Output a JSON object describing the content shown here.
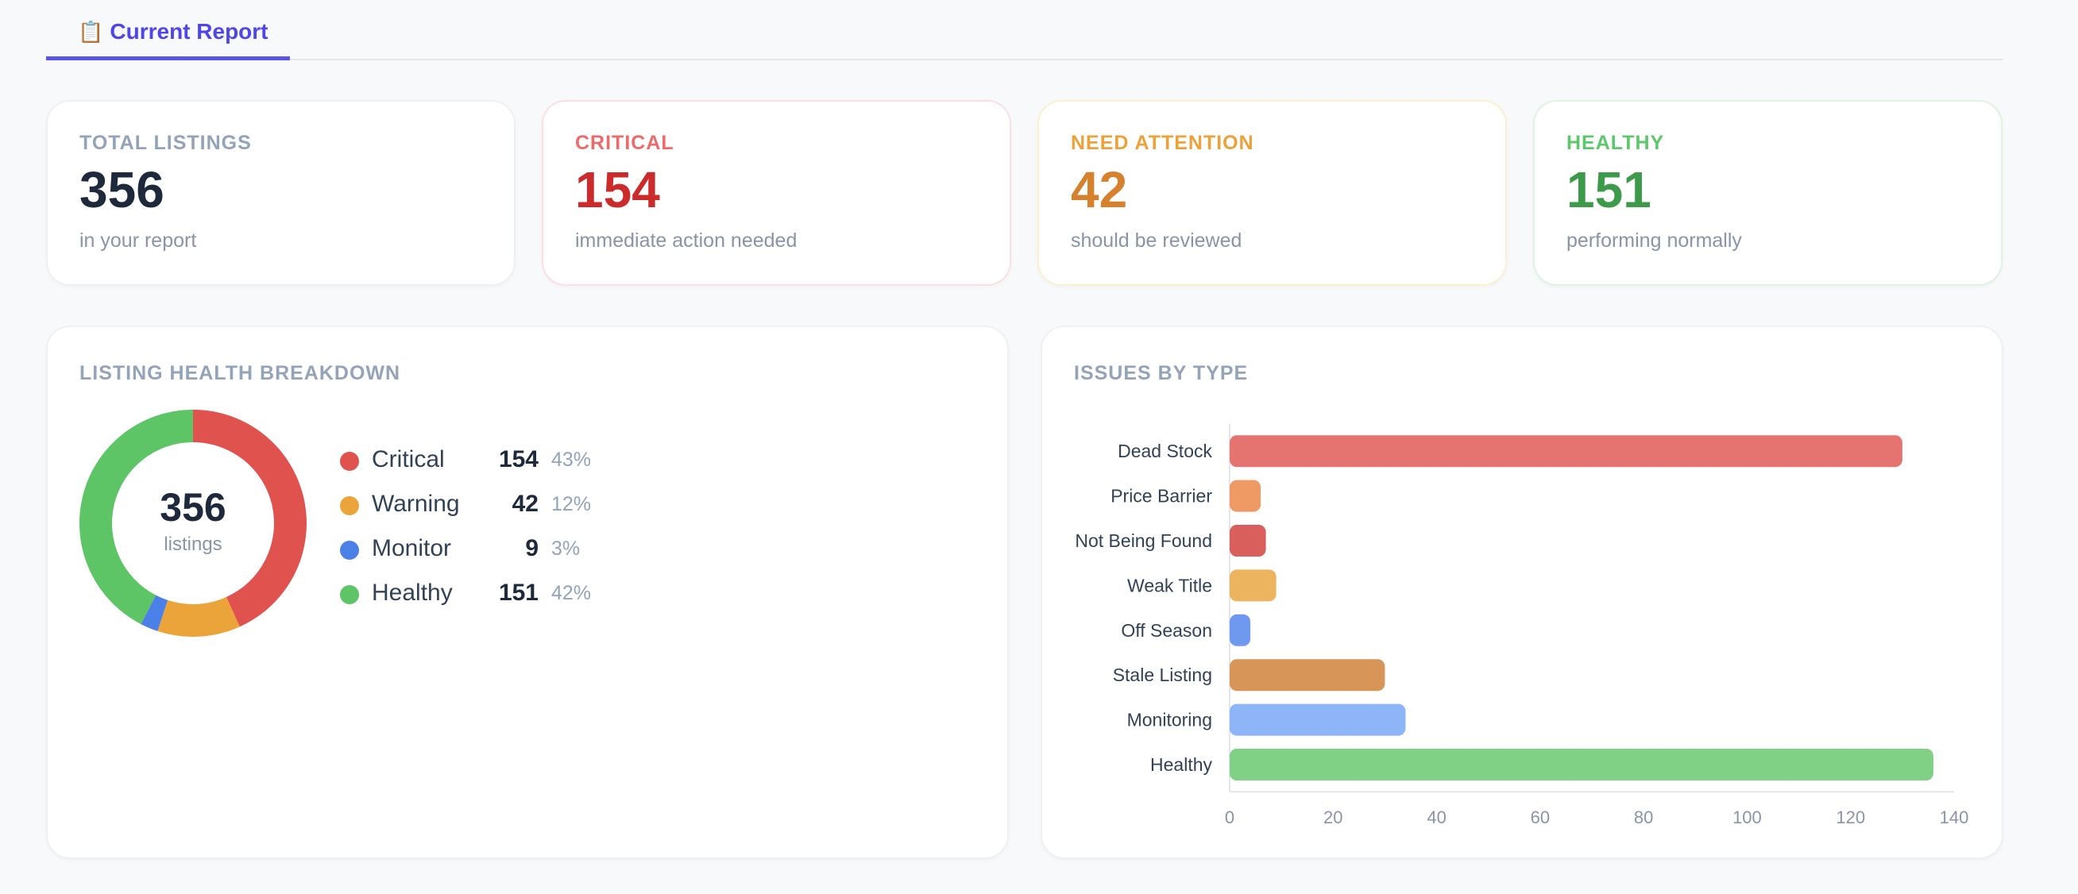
{
  "tabs": [
    {
      "icon": "📋",
      "label": "Current Report",
      "active": true
    }
  ],
  "stats": [
    {
      "label": "TOTAL LISTINGS",
      "value": "356",
      "sub": "in your report",
      "label_color": "#94a3b8",
      "value_color": "#1e293b"
    },
    {
      "label": "CRITICAL",
      "value": "154",
      "sub": "immediate action needed",
      "label_color": "#ec6b6b",
      "value_color": "#cc2b2b"
    },
    {
      "label": "NEED ATTENTION",
      "value": "42",
      "sub": "should be reviewed",
      "label_color": "#eba23a",
      "value_color": "#d5812d"
    },
    {
      "label": "HEALTHY",
      "value": "151",
      "sub": "performing normally",
      "label_color": "#5cc86b",
      "value_color": "#3e9a4b"
    }
  ],
  "breakdown": {
    "title": "LISTING HEALTH BREAKDOWN",
    "total": "356",
    "unit": "listings",
    "items": [
      {
        "name": "Critical",
        "count": "154",
        "pct": "43%",
        "value": 154,
        "color": "#e0524e"
      },
      {
        "name": "Warning",
        "count": "42",
        "pct": "12%",
        "value": 42,
        "color": "#eba43a"
      },
      {
        "name": "Monitor",
        "count": "9",
        "pct": "3%",
        "value": 9,
        "color": "#4b80e8"
      },
      {
        "name": "Healthy",
        "count": "151",
        "pct": "42%",
        "value": 151,
        "color": "#5dc566"
      }
    ]
  },
  "issues": {
    "title": "ISSUES BY TYPE"
  },
  "chart_data": {
    "type": "bar",
    "orientation": "horizontal",
    "categories": [
      "Dead Stock",
      "Price Barrier",
      "Not Being Found",
      "Weak Title",
      "Off Season",
      "Stale Listing",
      "Monitoring",
      "Healthy"
    ],
    "values": [
      130,
      6,
      7,
      9,
      4,
      30,
      34,
      136
    ],
    "colors": [
      "#e5736f",
      "#ef9a64",
      "#d85f5b",
      "#ecb45f",
      "#6f98ef",
      "#d89558",
      "#8db5f7",
      "#80d086"
    ],
    "xticks": [
      "0",
      "20",
      "40",
      "60",
      "80",
      "100",
      "120",
      "140"
    ],
    "xlim": [
      0,
      140
    ],
    "grid": false
  }
}
